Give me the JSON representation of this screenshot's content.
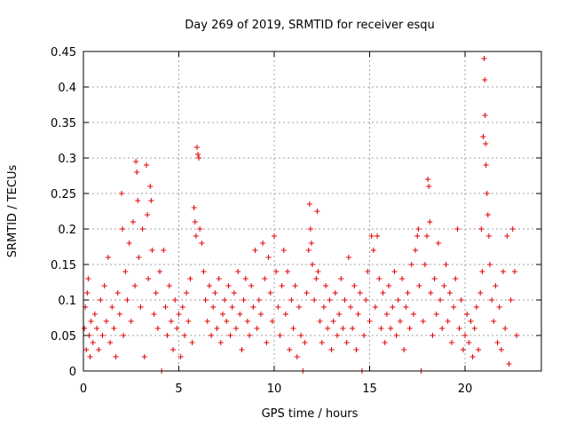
{
  "chart_data": {
    "type": "scatter",
    "title": "Day 269 of 2019, SRMTID for receiver esqu",
    "xlabel": "GPS time / hours",
    "ylabel": "SRMTID / TECUs",
    "xlim": [
      0,
      24
    ],
    "ylim": [
      0,
      0.45
    ],
    "xticks": [
      0,
      5,
      10,
      15,
      20
    ],
    "xtick_labels": [
      "0",
      "5",
      "10",
      "15",
      "20"
    ],
    "yticks": [
      0,
      0.05,
      0.1,
      0.15,
      0.2,
      0.25,
      0.3,
      0.35,
      0.4,
      0.45
    ],
    "ytick_labels": [
      "0",
      "0.05",
      "0.1",
      "0.15",
      "0.2",
      "0.25",
      "0.3",
      "0.35",
      "0.4",
      "0.45"
    ],
    "grid": true,
    "marker": "+",
    "marker_color": "#e00000",
    "series": [
      {
        "name": "SRMTID",
        "points": [
          [
            0.05,
            0.06
          ],
          [
            0.1,
            0.09
          ],
          [
            0.15,
            0.03
          ],
          [
            0.2,
            0.11
          ],
          [
            0.25,
            0.13
          ],
          [
            0.3,
            0.05
          ],
          [
            0.35,
            0.02
          ],
          [
            0.4,
            0.07
          ],
          [
            0.5,
            0.04
          ],
          [
            0.6,
            0.08
          ],
          [
            0.7,
            0.06
          ],
          [
            0.8,
            0.03
          ],
          [
            0.9,
            0.1
          ],
          [
            1.0,
            0.05
          ],
          [
            1.1,
            0.12
          ],
          [
            1.2,
            0.07
          ],
          [
            1.3,
            0.16
          ],
          [
            1.4,
            0.04
          ],
          [
            1.5,
            0.09
          ],
          [
            1.6,
            0.06
          ],
          [
            1.7,
            0.02
          ],
          [
            1.8,
            0.11
          ],
          [
            1.9,
            0.08
          ],
          [
            2.0,
            0.25
          ],
          [
            2.05,
            0.2
          ],
          [
            2.1,
            0.05
          ],
          [
            2.2,
            0.14
          ],
          [
            2.3,
            0.1
          ],
          [
            2.4,
            0.18
          ],
          [
            2.5,
            0.07
          ],
          [
            2.6,
            0.21
          ],
          [
            2.7,
            0.12
          ],
          [
            2.75,
            0.295
          ],
          [
            2.8,
            0.28
          ],
          [
            2.85,
            0.24
          ],
          [
            2.9,
            0.16
          ],
          [
            3.0,
            0.09
          ],
          [
            3.1,
            0.2
          ],
          [
            3.2,
            0.02
          ],
          [
            3.3,
            0.29
          ],
          [
            3.35,
            0.22
          ],
          [
            3.4,
            0.13
          ],
          [
            3.5,
            0.26
          ],
          [
            3.55,
            0.24
          ],
          [
            3.6,
            0.17
          ],
          [
            3.7,
            0.08
          ],
          [
            3.8,
            0.11
          ],
          [
            3.9,
            0.06
          ],
          [
            4.0,
            0.14
          ],
          [
            4.1,
            0.0
          ],
          [
            4.2,
            0.17
          ],
          [
            4.3,
            0.09
          ],
          [
            4.4,
            0.05
          ],
          [
            4.5,
            0.12
          ],
          [
            4.6,
            0.07
          ],
          [
            4.7,
            0.03
          ],
          [
            4.8,
            0.1
          ],
          [
            4.9,
            0.06
          ],
          [
            5.0,
            0.08
          ],
          [
            5.1,
            0.02
          ],
          [
            5.2,
            0.09
          ],
          [
            5.3,
            0.05
          ],
          [
            5.4,
            0.11
          ],
          [
            5.5,
            0.07
          ],
          [
            5.6,
            0.13
          ],
          [
            5.7,
            0.04
          ],
          [
            5.8,
            0.23
          ],
          [
            5.85,
            0.21
          ],
          [
            5.9,
            0.19
          ],
          [
            5.95,
            0.315
          ],
          [
            6.0,
            0.305
          ],
          [
            6.05,
            0.3
          ],
          [
            6.1,
            0.2
          ],
          [
            6.2,
            0.18
          ],
          [
            6.3,
            0.14
          ],
          [
            6.4,
            0.1
          ],
          [
            6.5,
            0.07
          ],
          [
            6.6,
            0.12
          ],
          [
            6.7,
            0.05
          ],
          [
            6.8,
            0.09
          ],
          [
            6.9,
            0.11
          ],
          [
            7.0,
            0.06
          ],
          [
            7.1,
            0.13
          ],
          [
            7.2,
            0.04
          ],
          [
            7.3,
            0.08
          ],
          [
            7.4,
            0.1
          ],
          [
            7.5,
            0.07
          ],
          [
            7.6,
            0.12
          ],
          [
            7.7,
            0.05
          ],
          [
            7.8,
            0.09
          ],
          [
            7.9,
            0.11
          ],
          [
            8.0,
            0.06
          ],
          [
            8.1,
            0.14
          ],
          [
            8.2,
            0.08
          ],
          [
            8.3,
            0.03
          ],
          [
            8.4,
            0.1
          ],
          [
            8.5,
            0.13
          ],
          [
            8.6,
            0.07
          ],
          [
            8.7,
            0.05
          ],
          [
            8.8,
            0.12
          ],
          [
            8.9,
            0.09
          ],
          [
            9.0,
            0.17
          ],
          [
            9.1,
            0.06
          ],
          [
            9.2,
            0.1
          ],
          [
            9.3,
            0.08
          ],
          [
            9.4,
            0.18
          ],
          [
            9.5,
            0.13
          ],
          [
            9.6,
            0.04
          ],
          [
            9.7,
            0.16
          ],
          [
            9.8,
            0.11
          ],
          [
            9.9,
            0.07
          ],
          [
            10.0,
            0.19
          ],
          [
            10.1,
            0.14
          ],
          [
            10.2,
            0.09
          ],
          [
            10.3,
            0.05
          ],
          [
            10.4,
            0.12
          ],
          [
            10.5,
            0.17
          ],
          [
            10.6,
            0.08
          ],
          [
            10.7,
            0.14
          ],
          [
            10.8,
            0.03
          ],
          [
            10.9,
            0.1
          ],
          [
            11.0,
            0.06
          ],
          [
            11.1,
            0.12
          ],
          [
            11.2,
            0.02
          ],
          [
            11.3,
            0.09
          ],
          [
            11.4,
            0.05
          ],
          [
            11.5,
            0.0
          ],
          [
            11.6,
            0.04
          ],
          [
            11.7,
            0.11
          ],
          [
            11.8,
            0.17
          ],
          [
            11.85,
            0.235
          ],
          [
            11.9,
            0.2
          ],
          [
            11.95,
            0.18
          ],
          [
            12.0,
            0.15
          ],
          [
            12.1,
            0.1
          ],
          [
            12.2,
            0.13
          ],
          [
            12.25,
            0.225
          ],
          [
            12.3,
            0.14
          ],
          [
            12.4,
            0.07
          ],
          [
            12.5,
            0.04
          ],
          [
            12.6,
            0.09
          ],
          [
            12.7,
            0.12
          ],
          [
            12.8,
            0.06
          ],
          [
            12.9,
            0.1
          ],
          [
            13.0,
            0.03
          ],
          [
            13.1,
            0.07
          ],
          [
            13.2,
            0.11
          ],
          [
            13.3,
            0.05
          ],
          [
            13.4,
            0.08
          ],
          [
            13.5,
            0.13
          ],
          [
            13.6,
            0.06
          ],
          [
            13.7,
            0.1
          ],
          [
            13.8,
            0.04
          ],
          [
            13.9,
            0.16
          ],
          [
            14.0,
            0.09
          ],
          [
            14.1,
            0.06
          ],
          [
            14.2,
            0.12
          ],
          [
            14.3,
            0.03
          ],
          [
            14.4,
            0.08
          ],
          [
            14.5,
            0.11
          ],
          [
            14.6,
            0.0
          ],
          [
            14.7,
            0.05
          ],
          [
            14.8,
            0.1
          ],
          [
            14.9,
            0.14
          ],
          [
            15.0,
            0.07
          ],
          [
            15.1,
            0.19
          ],
          [
            15.2,
            0.17
          ],
          [
            15.3,
            0.09
          ],
          [
            15.4,
            0.19
          ],
          [
            15.5,
            0.13
          ],
          [
            15.6,
            0.06
          ],
          [
            15.7,
            0.11
          ],
          [
            15.8,
            0.04
          ],
          [
            15.9,
            0.08
          ],
          [
            16.0,
            0.12
          ],
          [
            16.1,
            0.06
          ],
          [
            16.2,
            0.09
          ],
          [
            16.3,
            0.14
          ],
          [
            16.4,
            0.05
          ],
          [
            16.5,
            0.1
          ],
          [
            16.6,
            0.07
          ],
          [
            16.7,
            0.13
          ],
          [
            16.8,
            0.03
          ],
          [
            16.9,
            0.09
          ],
          [
            17.0,
            0.11
          ],
          [
            17.1,
            0.06
          ],
          [
            17.2,
            0.15
          ],
          [
            17.3,
            0.08
          ],
          [
            17.4,
            0.17
          ],
          [
            17.5,
            0.19
          ],
          [
            17.55,
            0.2
          ],
          [
            17.6,
            0.12
          ],
          [
            17.7,
            0.0
          ],
          [
            17.8,
            0.07
          ],
          [
            17.9,
            0.15
          ],
          [
            18.0,
            0.19
          ],
          [
            18.05,
            0.27
          ],
          [
            18.1,
            0.26
          ],
          [
            18.15,
            0.21
          ],
          [
            18.2,
            0.11
          ],
          [
            18.3,
            0.05
          ],
          [
            18.4,
            0.13
          ],
          [
            18.5,
            0.08
          ],
          [
            18.6,
            0.18
          ],
          [
            18.7,
            0.1
          ],
          [
            18.8,
            0.06
          ],
          [
            18.9,
            0.12
          ],
          [
            19.0,
            0.15
          ],
          [
            19.1,
            0.07
          ],
          [
            19.2,
            0.11
          ],
          [
            19.3,
            0.04
          ],
          [
            19.4,
            0.09
          ],
          [
            19.5,
            0.13
          ],
          [
            19.6,
            0.2
          ],
          [
            19.7,
            0.06
          ],
          [
            19.8,
            0.1
          ],
          [
            19.9,
            0.03
          ],
          [
            20.0,
            0.05
          ],
          [
            20.1,
            0.08
          ],
          [
            20.2,
            0.04
          ],
          [
            20.3,
            0.07
          ],
          [
            20.4,
            0.02
          ],
          [
            20.5,
            0.06
          ],
          [
            20.6,
            0.09
          ],
          [
            20.7,
            0.03
          ],
          [
            20.8,
            0.11
          ],
          [
            20.85,
            0.2
          ],
          [
            20.9,
            0.14
          ],
          [
            20.95,
            0.33
          ],
          [
            21.0,
            0.44
          ],
          [
            21.03,
            0.41
          ],
          [
            21.05,
            0.36
          ],
          [
            21.08,
            0.32
          ],
          [
            21.1,
            0.29
          ],
          [
            21.15,
            0.25
          ],
          [
            21.2,
            0.22
          ],
          [
            21.25,
            0.19
          ],
          [
            21.3,
            0.15
          ],
          [
            21.4,
            0.1
          ],
          [
            21.5,
            0.07
          ],
          [
            21.6,
            0.12
          ],
          [
            21.7,
            0.04
          ],
          [
            21.8,
            0.09
          ],
          [
            21.9,
            0.03
          ],
          [
            22.0,
            0.14
          ],
          [
            22.1,
            0.06
          ],
          [
            22.2,
            0.19
          ],
          [
            22.3,
            0.01
          ],
          [
            22.4,
            0.1
          ],
          [
            22.5,
            0.2
          ],
          [
            22.6,
            0.14
          ],
          [
            22.7,
            0.05
          ]
        ]
      }
    ]
  }
}
